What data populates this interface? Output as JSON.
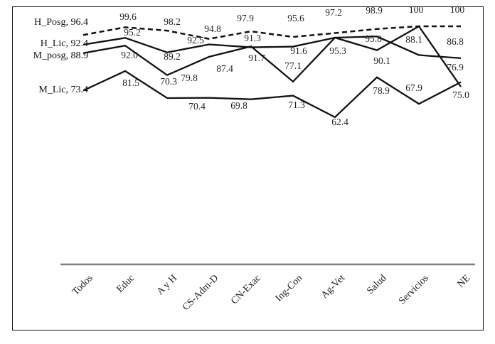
{
  "figure": {
    "background_color": "#ffffff",
    "border_color": "#161616",
    "line_color": "#111111",
    "axis_line_color": "#7f7f7f"
  },
  "chart_data": {
    "type": "line",
    "title": "",
    "xlabel": "",
    "ylabel": "",
    "categories": [
      "Todos",
      "Educ",
      "A y H",
      "CS-Adm-D",
      "CN-Exac",
      "Ing-Con",
      "Ag-Vet",
      "Salud",
      "Servicios",
      "NE"
    ],
    "series": [
      {
        "name": "H_Posg",
        "label_text": "H_Posg, 96.4",
        "line_style": "dashed",
        "values": [
          "96.4",
          "99.6",
          "98.2",
          "94.8",
          "97.9",
          "95.6",
          "97.2",
          "98.9",
          "100",
          "100"
        ]
      },
      {
        "name": "H_Lic",
        "label_text": "H_Lic, 92.4",
        "line_style": "solid",
        "values": [
          "92.4",
          "95.2",
          "89.2",
          "92.5",
          "91.3",
          "91.6",
          "95.3",
          "95.8",
          "88.1",
          "86.8"
        ]
      },
      {
        "name": "M_posg",
        "label_text": "M_posg, 88.9",
        "line_style": "solid",
        "values": [
          "88.9",
          "92.0",
          "79.8",
          "87.4",
          "91.7",
          "77.1",
          "95.3",
          "90.1",
          "100",
          "75.0"
        ]
      },
      {
        "name": "M_Lic",
        "label_text": "M_Lic, 73.4",
        "line_style": "solid",
        "values": [
          "73.4",
          "81.5",
          "70.3",
          "70.4",
          "69.8",
          "71.3",
          "62.4",
          "78.9",
          "67.9",
          "76.9"
        ]
      }
    ],
    "data_labels_shown": true,
    "legend_position": "inline-left-of-lines",
    "grid": false,
    "y_axis_visible": false,
    "x_axis_visible": true,
    "y_implied_range": [
      60,
      102
    ]
  }
}
